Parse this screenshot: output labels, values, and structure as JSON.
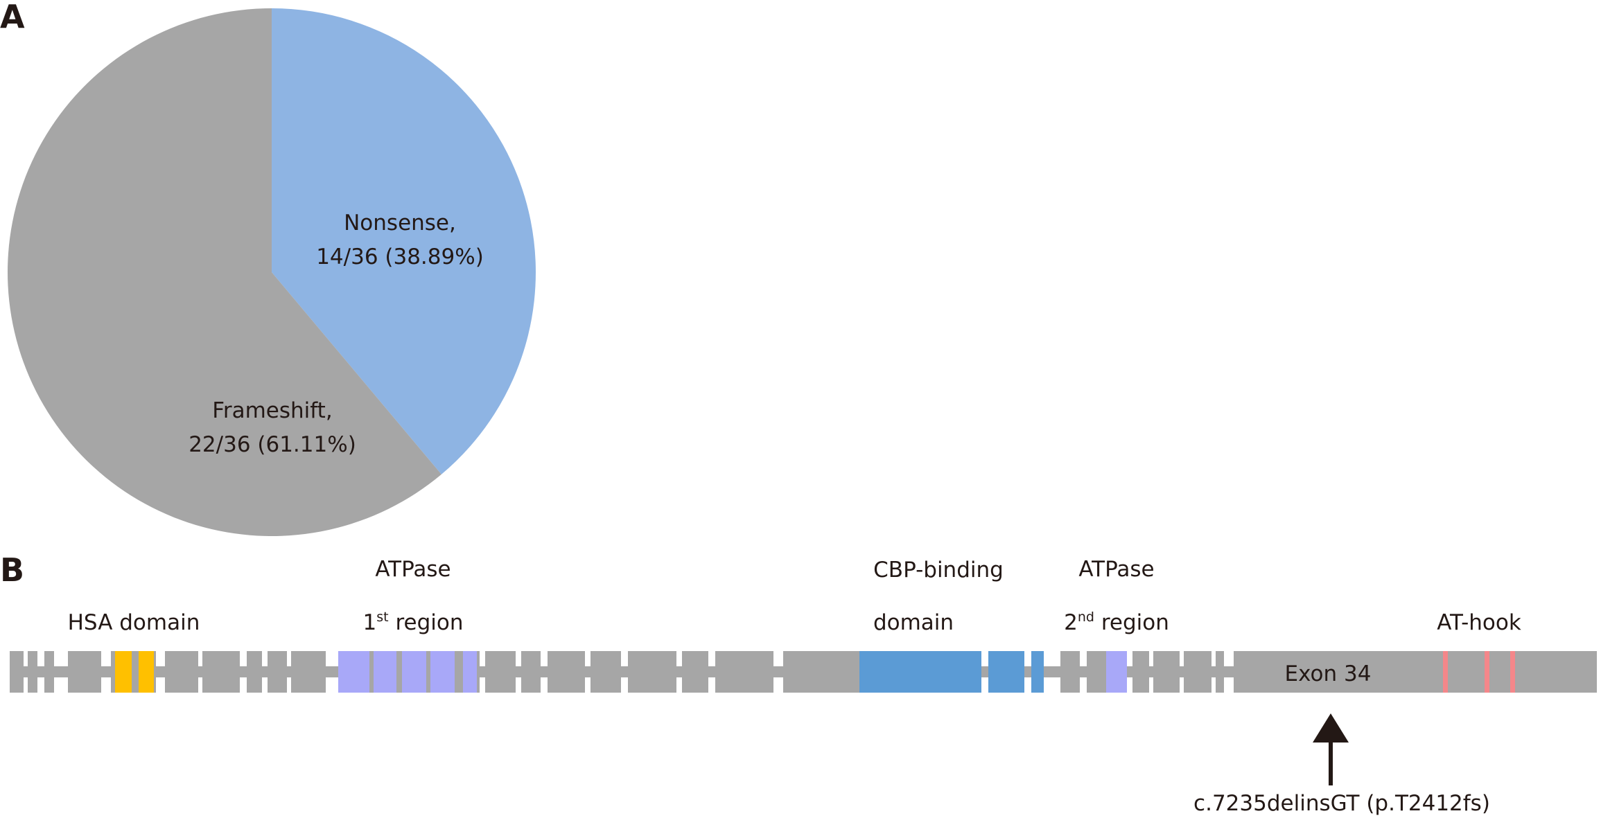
{
  "panels": {
    "a": "A",
    "b": "B"
  },
  "chart_data": {
    "type": "pie",
    "slices": [
      {
        "label_line1": "Nonsense,",
        "label_line2": "14/36 (38.89%)",
        "count": 14,
        "total": 36,
        "percent": 38.89,
        "color": "#8eb4e3"
      },
      {
        "label_line1": "Frameshift,",
        "label_line2": "22/36 (61.11%)",
        "count": 22,
        "total": 36,
        "percent": 61.11,
        "color": "#a6a6a6"
      }
    ]
  },
  "gene_diagram": {
    "colors": {
      "exon": "#a6a6a6",
      "hsa": "#ffc000",
      "atpase": "#a8a8f8",
      "cbp": "#5b9bd5",
      "at_hook": "#f4878a",
      "arrow": "#231815"
    },
    "domain_labels": {
      "hsa": "HSA domain",
      "atpase1_line1": "ATPase",
      "atpase1_ordinal": "1",
      "atpase1_sup": "st",
      "atpase1_rest": " region",
      "cbp_line1": "CBP-binding",
      "cbp_line2": "domain",
      "atpase2_line1": "ATPase",
      "atpase2_ordinal": "2",
      "atpase2_sup": "nd",
      "atpase2_rest": " region",
      "at_hook": "AT-hook"
    },
    "exon_label": "Exon 34",
    "mutation": "c.7235delinsGT (p.T2412fs)"
  }
}
